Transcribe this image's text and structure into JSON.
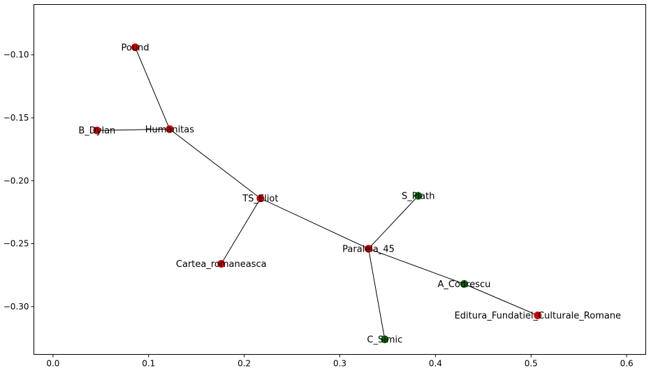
{
  "chart_data": {
    "type": "scatter",
    "title": "",
    "xlabel": "",
    "ylabel": "",
    "xlim": [
      -0.02,
      0.62
    ],
    "ylim": [
      -0.338,
      -0.06
    ],
    "xticks": [
      {
        "value": 0.0,
        "label": "0.0"
      },
      {
        "value": 0.1,
        "label": "0.1"
      },
      {
        "value": 0.2,
        "label": "0.2"
      },
      {
        "value": 0.3,
        "label": "0.3"
      },
      {
        "value": 0.4,
        "label": "0.4"
      },
      {
        "value": 0.5,
        "label": "0.5"
      },
      {
        "value": 0.6,
        "label": "0.6"
      }
    ],
    "yticks": [
      {
        "value": -0.1,
        "label": "−0.10"
      },
      {
        "value": -0.15,
        "label": "−0.15"
      },
      {
        "value": -0.2,
        "label": "−0.20"
      },
      {
        "value": -0.25,
        "label": "−0.25"
      },
      {
        "value": -0.3,
        "label": "−0.30"
      }
    ],
    "colors": {
      "red": "#cc0000",
      "green": "#006600"
    },
    "nodes": [
      {
        "id": "Pound",
        "label": "Pound",
        "x": 0.086,
        "y": -0.094,
        "color": "red"
      },
      {
        "id": "B_Dylan",
        "label": "B_Dylan",
        "x": 0.046,
        "y": -0.16,
        "color": "red"
      },
      {
        "id": "Humanitas",
        "label": "Humanitas",
        "x": 0.122,
        "y": -0.159,
        "color": "red"
      },
      {
        "id": "TS_Eliot",
        "label": "TS_Eliot",
        "x": 0.217,
        "y": -0.214,
        "color": "red"
      },
      {
        "id": "Cartea_romaneasca",
        "label": "Cartea_romaneasca",
        "x": 0.176,
        "y": -0.266,
        "color": "red"
      },
      {
        "id": "Paralela_45",
        "label": "Paralela_45",
        "x": 0.33,
        "y": -0.254,
        "color": "red"
      },
      {
        "id": "S_Plath",
        "label": "S_Plath",
        "x": 0.382,
        "y": -0.212,
        "color": "green"
      },
      {
        "id": "A_Codrescu",
        "label": "A_Codrescu",
        "x": 0.43,
        "y": -0.282,
        "color": "green"
      },
      {
        "id": "Editura_Fundatiei_Culturale_Romane",
        "label": "Editura_Fundatiei_Culturale_Romane",
        "x": 0.507,
        "y": -0.307,
        "color": "red"
      },
      {
        "id": "C_Simic",
        "label": "C_Simic",
        "x": 0.347,
        "y": -0.326,
        "color": "green"
      }
    ],
    "edges": [
      [
        "Pound",
        "Humanitas"
      ],
      [
        "B_Dylan",
        "Humanitas"
      ],
      [
        "Humanitas",
        "TS_Eliot"
      ],
      [
        "TS_Eliot",
        "Cartea_romaneasca"
      ],
      [
        "TS_Eliot",
        "Paralela_45"
      ],
      [
        "Paralela_45",
        "S_Plath"
      ],
      [
        "Paralela_45",
        "A_Codrescu"
      ],
      [
        "Paralela_45",
        "C_Simic"
      ],
      [
        "A_Codrescu",
        "Editura_Fundatiei_Culturale_Romane"
      ]
    ]
  }
}
